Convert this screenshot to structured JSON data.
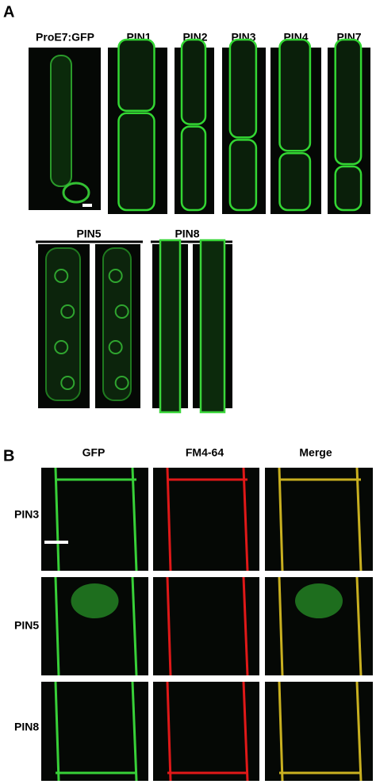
{
  "panel_a": {
    "label": "A",
    "top_row": [
      "ProE7:GFP",
      "PIN1",
      "PIN2",
      "PIN3",
      "PIN4",
      "PIN7"
    ],
    "bottom_groups": [
      "PIN5",
      "PIN8"
    ]
  },
  "panel_b": {
    "label": "B",
    "columns": [
      "GFP",
      "FM4-64",
      "Merge"
    ],
    "rows": [
      "PIN3",
      "PIN5",
      "PIN8"
    ]
  }
}
